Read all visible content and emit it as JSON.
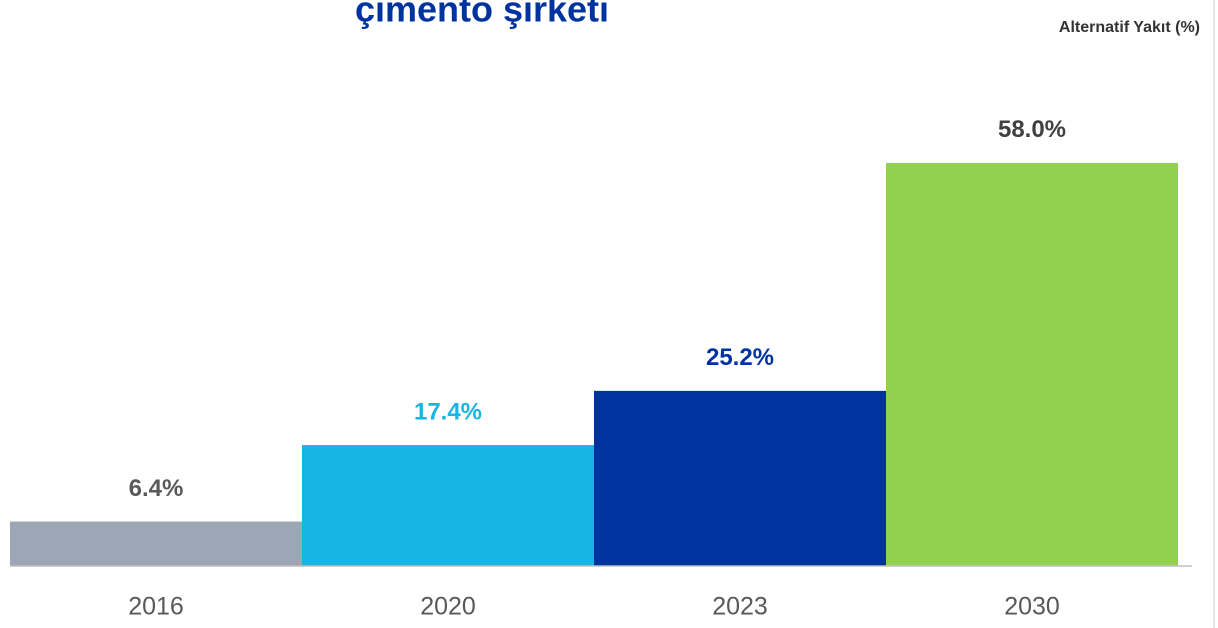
{
  "chart_data": {
    "type": "bar",
    "title": "çimento şirketi",
    "subtitle": "Alternatif Yakıt (%)",
    "categories": [
      "2016",
      "2020",
      "2023",
      "2030"
    ],
    "values": [
      6.4,
      17.4,
      25.2,
      58.0
    ],
    "value_labels": [
      "6.4%",
      "17.4%",
      "25.2%",
      "58.0%"
    ],
    "colors": [
      "#9ca6b5",
      "#17b5e4",
      "#0033a0",
      "#92d050"
    ],
    "label_colors": [
      "#595959",
      "#17b5e4",
      "#0033a0",
      "#404040"
    ]
  }
}
